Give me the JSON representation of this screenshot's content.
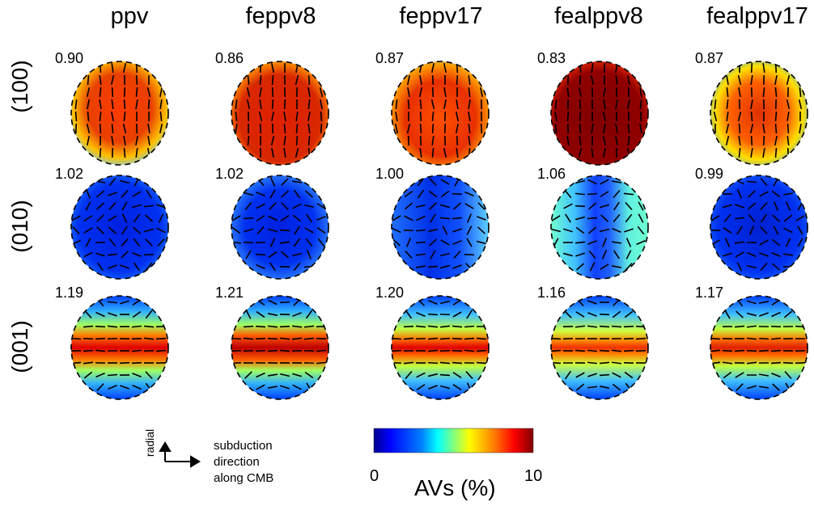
{
  "columns": [
    "ppv",
    "feppv8",
    "feppv17",
    "fealppv8",
    "fealppv17"
  ],
  "rows": [
    "(100)",
    "(010)",
    "(001)"
  ],
  "values": [
    [
      "0.90",
      "0.86",
      "0.87",
      "0.83",
      "0.87"
    ],
    [
      "1.02",
      "1.02",
      "1.00",
      "1.06",
      "0.99"
    ],
    [
      "1.19",
      "1.21",
      "1.20",
      "1.16",
      "1.17"
    ]
  ],
  "colorbar": {
    "min_label": "0",
    "max_label": "10",
    "title": "AVs (%)",
    "colors": [
      "#00008f",
      "#0000ff",
      "#0080ff",
      "#00ffff",
      "#80ff80",
      "#ffff00",
      "#ff8000",
      "#ff0000",
      "#800000"
    ]
  },
  "axes": {
    "vertical": "radial",
    "horizontal_lines": [
      "subduction",
      "direction",
      "along CMB"
    ]
  }
}
